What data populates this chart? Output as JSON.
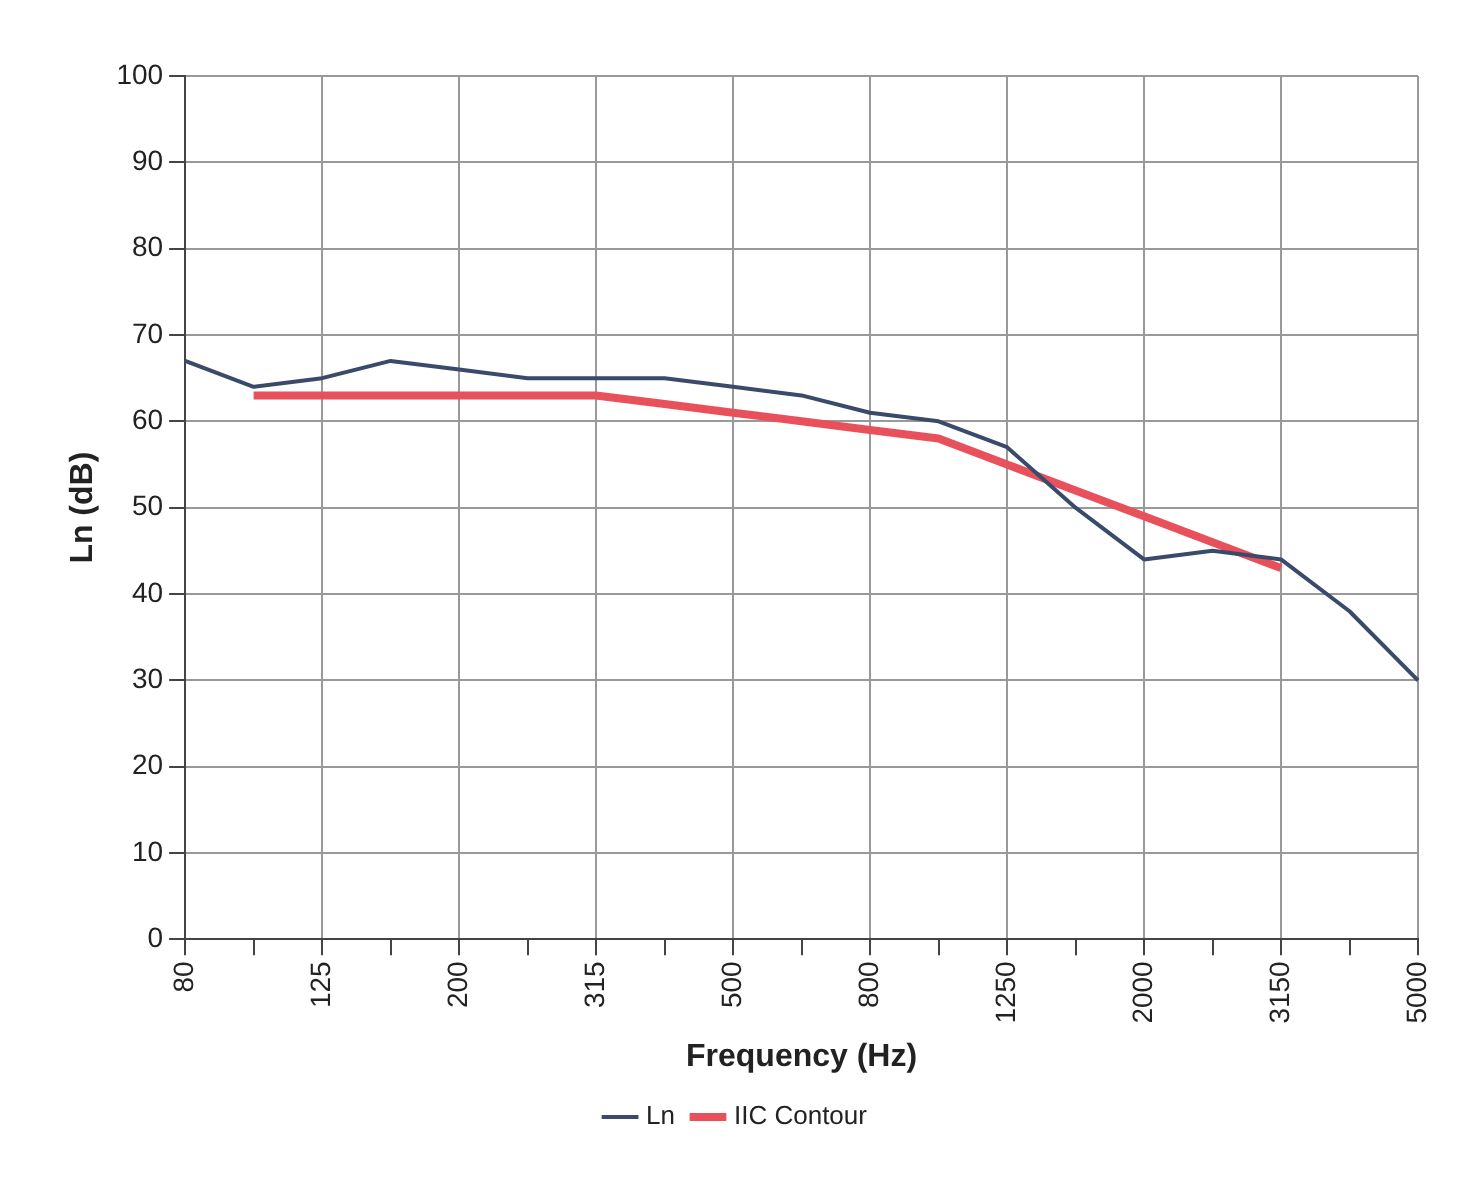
{
  "chart_data": {
    "type": "line",
    "xlabel": "Frequency (Hz)",
    "ylabel": "Ln (dB)",
    "categories": [
      "80",
      null,
      "125",
      null,
      "200",
      null,
      "315",
      null,
      "500",
      null,
      "800",
      null,
      "1250",
      null,
      "2000",
      null,
      "3150",
      null,
      "5000"
    ],
    "series": [
      {
        "name": "Ln",
        "color": "#3a4a6b",
        "values": [
          67,
          64,
          65,
          67,
          66,
          65,
          65,
          65,
          64,
          63,
          61,
          60,
          57,
          50,
          44,
          45,
          44,
          38,
          30
        ]
      },
      {
        "name": "IIC Contour",
        "color": "#e8505b",
        "values": [
          null,
          63,
          63,
          63,
          63,
          63,
          63,
          62,
          61,
          60,
          59,
          58,
          55,
          52,
          49,
          46,
          43,
          null,
          null
        ]
      }
    ],
    "ylim": [
      0,
      100
    ],
    "yticks": [
      0,
      10,
      20,
      30,
      40,
      50,
      60,
      70,
      80,
      90,
      100
    ],
    "grid": true,
    "legend": "bottom",
    "marker": "none",
    "line_style": "solid"
  }
}
